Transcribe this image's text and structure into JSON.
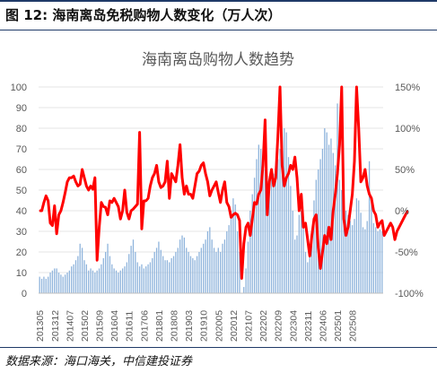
{
  "figure": {
    "title": "图 12: 海南离岛免税购物人数变化（万人次）",
    "source": "数据来源：海口海关，中信建投证券"
  },
  "chart_data": {
    "type": "bar+line",
    "title": "海南离岛购物人数趋势",
    "y_left": {
      "min": 0,
      "max": 100,
      "ticks": [
        0,
        10,
        20,
        30,
        40,
        50,
        60,
        70,
        80,
        90,
        100
      ]
    },
    "y_right": {
      "min": -100,
      "max": 150,
      "ticks": [
        "-100%",
        "-50%",
        "0%",
        "50%",
        "100%",
        "150%"
      ],
      "values": [
        -100,
        -50,
        0,
        50,
        100,
        150
      ]
    },
    "x_tick_labels": [
      "201305",
      "201312",
      "201407",
      "201502",
      "201509",
      "201604",
      "201611",
      "201706",
      "201801",
      "201808",
      "201903",
      "201910",
      "202005",
      "202012",
      "202107",
      "202202",
      "202209",
      "202304",
      "202311",
      "202406",
      "202501",
      "202508"
    ],
    "colors": {
      "bars": "#8fb4dc",
      "line": "#ff0000"
    },
    "series": [
      {
        "type": "bar",
        "axis": "left",
        "values": [
          8,
          7,
          8,
          7,
          8,
          10,
          11,
          12,
          12,
          10,
          9,
          8,
          9,
          10,
          11,
          13,
          14,
          16,
          18,
          24,
          22,
          16,
          14,
          11,
          12,
          11,
          10,
          11,
          12,
          14,
          17,
          20,
          24,
          18,
          14,
          12,
          11,
          10,
          11,
          12,
          13,
          15,
          19,
          23,
          26,
          20,
          15,
          13,
          14,
          12,
          13,
          14,
          15,
          17,
          20,
          22,
          25,
          21,
          18,
          16,
          16,
          15,
          17,
          18,
          20,
          22,
          26,
          28,
          27,
          22,
          20,
          18,
          17,
          16,
          18,
          20,
          22,
          24,
          26,
          30,
          32,
          26,
          22,
          20,
          22,
          20,
          24,
          26,
          30,
          33,
          40,
          46,
          43,
          30,
          20,
          0,
          3,
          12,
          25,
          40,
          48,
          56,
          65,
          72,
          70,
          62,
          60,
          57,
          56,
          55,
          58,
          60,
          65,
          70,
          76,
          80,
          78,
          66,
          52,
          40,
          26,
          28,
          38,
          40,
          34,
          20,
          15,
          20,
          30,
          45,
          55,
          60,
          65,
          70,
          80,
          78,
          72,
          75,
          68,
          62,
          92,
          55,
          50,
          45,
          40,
          38,
          35,
          33,
          36,
          46,
          45,
          39,
          32,
          31,
          35,
          64,
          44,
          34,
          32,
          30,
          31,
          30
        ]
      },
      {
        "type": "line",
        "axis": "right",
        "values": [
          0,
          0,
          10,
          18,
          12,
          -15,
          -18,
          6,
          -28,
          -5,
          0,
          10,
          22,
          35,
          40,
          40,
          42,
          35,
          30,
          32,
          50,
          40,
          30,
          25,
          30,
          26,
          40,
          -60,
          -20,
          10,
          5,
          4,
          -5,
          12,
          10,
          15,
          10,
          5,
          -10,
          0,
          25,
          -2,
          -10,
          0,
          2,
          5,
          8,
          95,
          -22,
          12,
          12,
          15,
          30,
          40,
          45,
          55,
          35,
          28,
          30,
          35,
          60,
          15,
          45,
          40,
          35,
          55,
          80,
          40,
          20,
          30,
          20,
          20,
          15,
          30,
          45,
          48,
          55,
          58,
          45,
          35,
          18,
          25,
          30,
          35,
          22,
          10,
          25,
          35,
          10,
          5,
          -8,
          -5,
          -3,
          -5,
          -12,
          -82,
          -40,
          -20,
          -15,
          -30,
          -10,
          10,
          8,
          20,
          25,
          55,
          110,
          -5,
          35,
          50,
          30,
          40,
          90,
          150,
          55,
          30,
          40,
          45,
          55,
          50,
          65,
          40,
          0,
          20,
          -20,
          -15,
          -35,
          -55,
          -30,
          -10,
          -5,
          -45,
          -70,
          -50,
          -30,
          -40,
          -20,
          -35,
          0,
          20,
          45,
          80,
          150,
          -10,
          -30,
          -20,
          0,
          20,
          60,
          150,
          100,
          35,
          40,
          50,
          30,
          20,
          15,
          0,
          -5,
          -20,
          -15,
          -12,
          -30,
          -25,
          -20,
          -15,
          -20,
          -35,
          -25,
          -20,
          -15,
          -10,
          -5,
          0
        ]
      }
    ]
  }
}
